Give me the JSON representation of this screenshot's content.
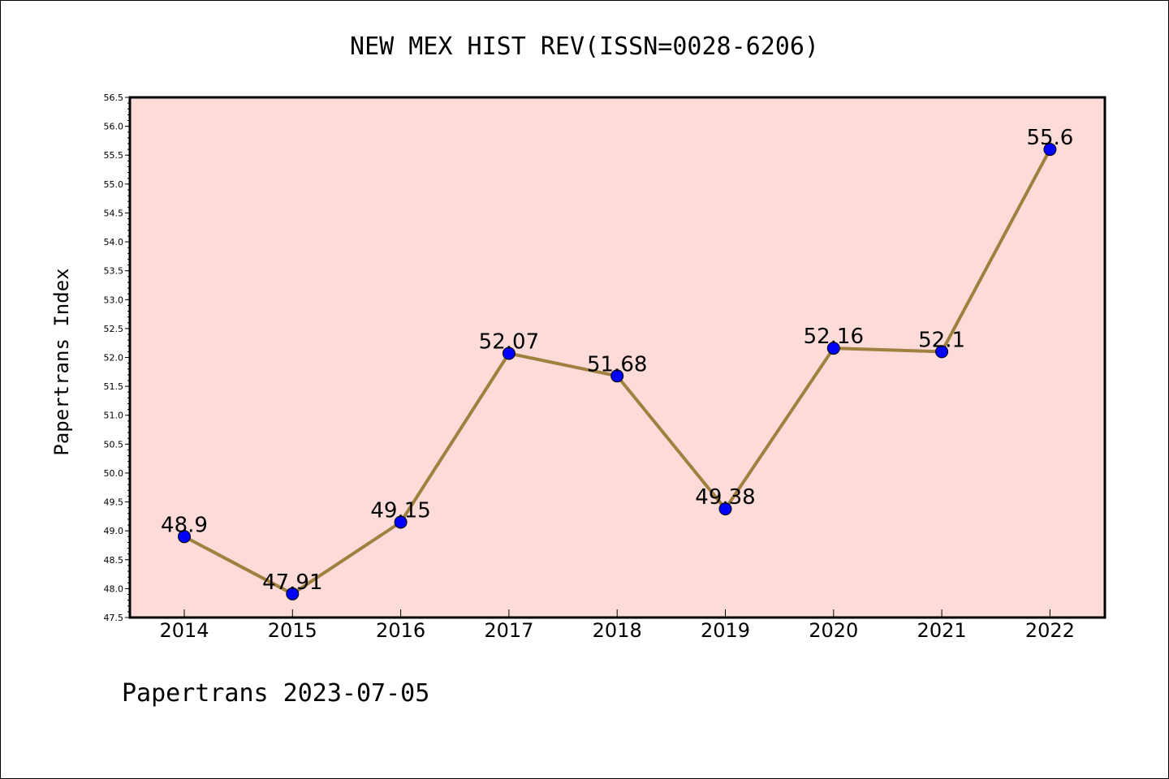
{
  "chart_data": {
    "type": "line",
    "title": "NEW MEX HIST REV(ISSN=0028-6206)",
    "ylabel": "Papertrans Index",
    "xlabel": "",
    "footer": "Papertrans 2023-07-05",
    "categories": [
      "2014",
      "2015",
      "2016",
      "2017",
      "2018",
      "2019",
      "2020",
      "2021",
      "2022"
    ],
    "series": [
      {
        "values": [
          48.9,
          47.91,
          49.15,
          52.07,
          51.68,
          49.38,
          52.16,
          52.1,
          55.6
        ],
        "labels": [
          "48.9",
          "47.91",
          "49.15",
          "52.07",
          "51.68",
          "49.38",
          "52.16",
          "52.1",
          "55.6"
        ]
      }
    ],
    "ylim": [
      47.5,
      56.5
    ],
    "yticks": [
      "47.5",
      "48.0",
      "48.5",
      "49.0",
      "49.5",
      "50.0",
      "50.5",
      "51.0",
      "51.5",
      "52.0",
      "52.5",
      "53.0",
      "53.5",
      "54.0",
      "54.5",
      "55.0",
      "55.5",
      "56.0",
      "56.5"
    ],
    "grid": false,
    "colors": {
      "plot_background": "#fddbd8",
      "line": "#a08040",
      "marker": "#0000ff"
    }
  }
}
